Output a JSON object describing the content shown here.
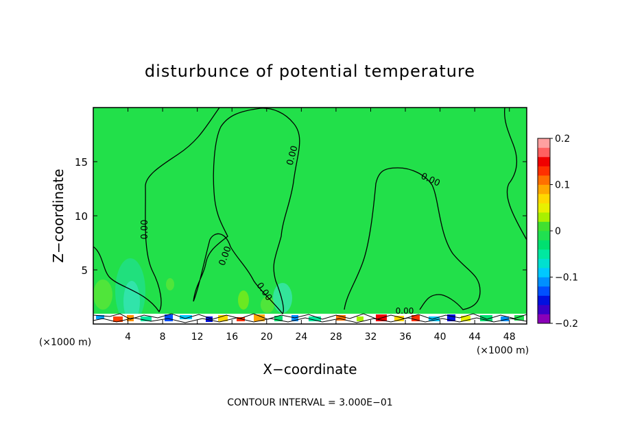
{
  "chart_data": {
    "type": "heatmap",
    "title": "disturbunce of potential temperature",
    "xlabel": "X−coordinate",
    "ylabel": "Z−coordinate",
    "x_unit_left": "(×1000 m)",
    "x_unit_right": "(×1000 m)",
    "xlim": [
      0,
      50
    ],
    "ylim": [
      0,
      20
    ],
    "x_ticks": [
      4,
      8,
      12,
      16,
      20,
      24,
      28,
      32,
      36,
      40,
      44,
      48
    ],
    "x_tick_labels": [
      "4",
      "8",
      "12",
      "16",
      "20",
      "24",
      "28",
      "32",
      "36",
      "40",
      "44",
      "48"
    ],
    "y_ticks": [
      5,
      10,
      15
    ],
    "y_tick_labels": [
      "5",
      "10",
      "15"
    ],
    "contour_label": "0.00",
    "footer": "CONTOUR INTERVAL = 3.000E−01",
    "colorbar": {
      "range": [
        -0.2,
        0.2
      ],
      "tick_values": [
        0.2,
        0.1,
        0,
        -0.1,
        -0.2
      ],
      "tick_labels": [
        "0.2",
        "0.1",
        "0",
        "−0.1",
        "−0.2"
      ],
      "colors": [
        "#8a00b8",
        "#3a00c8",
        "#0010e0",
        "#0050ff",
        "#0090ff",
        "#00c8ff",
        "#00e0d0",
        "#00e8a0",
        "#00e070",
        "#20e050",
        "#40e030",
        "#a8f000",
        "#e8f000",
        "#ffd800",
        "#ffa800",
        "#ff7000",
        "#ff3000",
        "#f00000",
        "#ff6060",
        "#ffa0a0"
      ]
    },
    "background_value": 0.02,
    "background_color": "#22e04a"
  }
}
